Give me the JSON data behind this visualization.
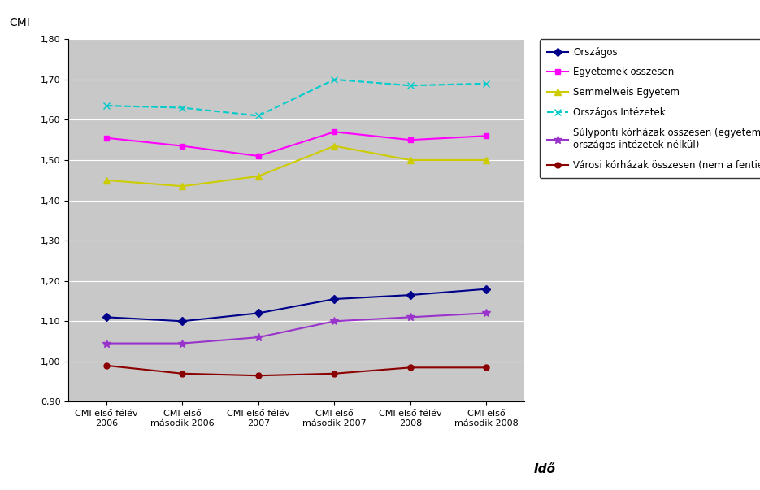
{
  "x_labels": [
    "CMI első félév\n2006",
    "CMI első\nmásodik 2006",
    "CMI első félév\n2007",
    "CMI első\nmásodik 2007",
    "CMI első félév\n2008",
    "CMI első\nmásodik 2008"
  ],
  "series": [
    {
      "name": "Országos",
      "color": "#00008B",
      "marker": "D",
      "markersize": 5,
      "linestyle": "-",
      "values": [
        1.11,
        1.1,
        1.12,
        1.155,
        1.165,
        1.18
      ]
    },
    {
      "name": "Egyetemek összesen",
      "color": "#FF00FF",
      "marker": "s",
      "markersize": 5,
      "linestyle": "-",
      "values": [
        1.555,
        1.535,
        1.51,
        1.57,
        1.55,
        1.56
      ]
    },
    {
      "name": "Semmelweis Egyetem",
      "color": "#CCCC00",
      "marker": "^",
      "markersize": 6,
      "linestyle": "-",
      "values": [
        1.45,
        1.435,
        1.46,
        1.535,
        1.5,
        1.5
      ]
    },
    {
      "name": "Országos Intézetek",
      "color": "#00CCCC",
      "marker": "x",
      "markersize": 6,
      "linestyle": "--",
      "values": [
        1.635,
        1.63,
        1.61,
        1.7,
        1.685,
        1.69
      ]
    },
    {
      "name": "Súlyponti kórházak összesen (egyetemek és\nországos intézetek nélkül)",
      "color": "#9933CC",
      "marker": "*",
      "markersize": 7,
      "linestyle": "-",
      "values": [
        1.045,
        1.045,
        1.06,
        1.1,
        1.11,
        1.12
      ]
    },
    {
      "name": "Városi kórházak összesen (nem a fentiek)",
      "color": "#8B0000",
      "marker": "o",
      "markersize": 5,
      "linestyle": "-",
      "values": [
        0.99,
        0.97,
        0.965,
        0.97,
        0.985,
        0.985
      ]
    }
  ],
  "cmi_label": "CMI",
  "xlabel": "Idő",
  "ylim": [
    0.9,
    1.8
  ],
  "yticks": [
    0.9,
    1.0,
    1.1,
    1.2,
    1.3,
    1.4,
    1.5,
    1.6,
    1.7,
    1.8
  ],
  "plot_bg_color": "#C8C8C8",
  "fig_bg_color": "#FFFFFF",
  "legend_fontsize": 8.5,
  "tick_fontsize": 8,
  "xlabel_fontsize": 11
}
